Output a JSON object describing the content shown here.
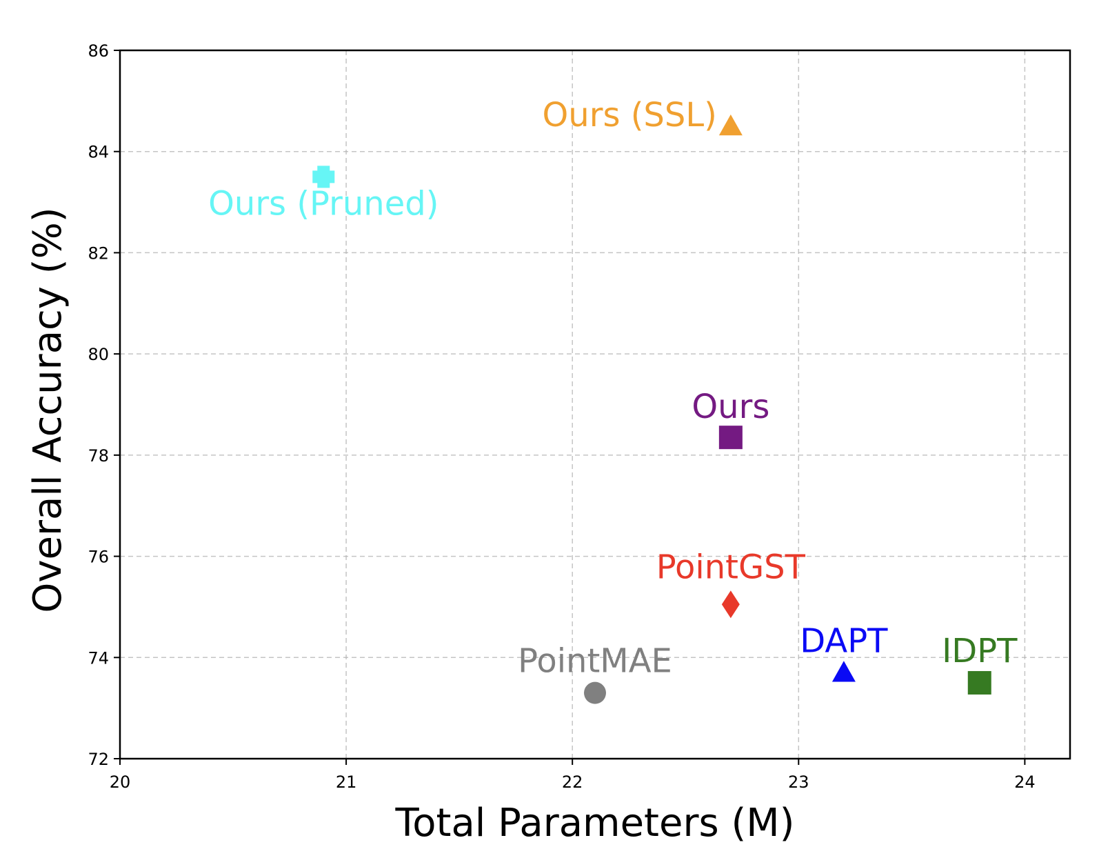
{
  "chart_data": {
    "type": "scatter",
    "title": "",
    "xlabel": "Total Parameters (M)",
    "ylabel": "Overall Accuracy (%)",
    "xlim": [
      20,
      24.2
    ],
    "ylim": [
      72,
      86
    ],
    "xticks": [
      20,
      21,
      22,
      23,
      24
    ],
    "yticks": [
      72,
      74,
      76,
      78,
      80,
      82,
      84,
      86
    ],
    "grid": true,
    "points": [
      {
        "label": "Ours (SSL)",
        "x": 22.7,
        "y": 84.5,
        "marker": "triangle",
        "color": "#f0a030"
      },
      {
        "label": "Ours (Pruned)",
        "x": 20.9,
        "y": 83.5,
        "marker": "plus",
        "color": "#66f5f5"
      },
      {
        "label": "Ours",
        "x": 22.7,
        "y": 78.35,
        "marker": "square",
        "color": "#741a82"
      },
      {
        "label": "PointGST",
        "x": 22.7,
        "y": 75.05,
        "marker": "diamond",
        "color": "#e8392a"
      },
      {
        "label": "DAPT",
        "x": 23.2,
        "y": 73.7,
        "marker": "triangle",
        "color": "#0a0af5"
      },
      {
        "label": "IDPT",
        "x": 23.8,
        "y": 73.5,
        "marker": "square",
        "color": "#367a22"
      },
      {
        "label": "PointMAE",
        "x": 22.1,
        "y": 73.3,
        "marker": "circle",
        "color": "#808080"
      }
    ]
  }
}
